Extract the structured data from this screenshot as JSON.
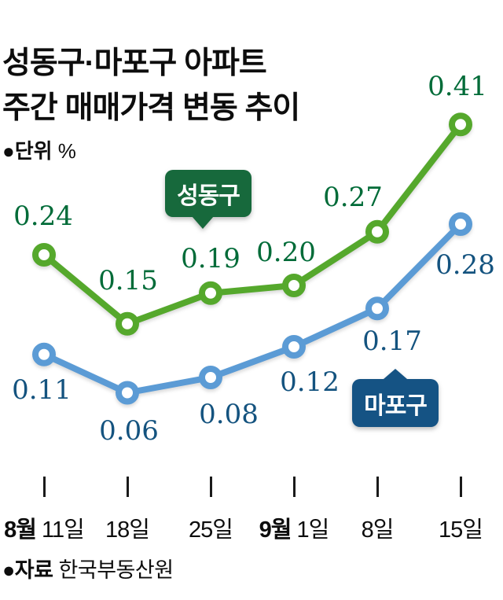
{
  "title": {
    "line1": "성동구·마포구 아파트",
    "line2": "주간 매매가격 변동 추이"
  },
  "unit": {
    "label": "●단위",
    "suffix": "%"
  },
  "footer": {
    "label": "●자료",
    "source": "한국부동산원"
  },
  "chart_data": {
    "type": "line",
    "title": "성동구·마포구 아파트 주간 매매가격 변동 추이",
    "unit": "%",
    "categories": [
      "8월 11일",
      "18일",
      "25일",
      "9월 1일",
      "8일",
      "15일"
    ],
    "x_ticks": [
      {
        "month": "8월",
        "day": "11일"
      },
      {
        "day": "18일"
      },
      {
        "day": "25일"
      },
      {
        "month": "9월",
        "day": "1일"
      },
      {
        "day": "8일"
      },
      {
        "day": "15일"
      }
    ],
    "series": [
      {
        "name": "성동구",
        "values": [
          0.24,
          0.15,
          0.19,
          0.2,
          0.27,
          0.41
        ],
        "labels": [
          "0.24",
          "0.15",
          "0.19",
          "0.20",
          "0.27",
          "0.41"
        ],
        "line_color": "#55a82c",
        "label_color": "#006b38",
        "badge_color": "#17693c",
        "label_offsets": [
          [
            -1,
            -49
          ],
          [
            1,
            -55
          ],
          [
            0,
            -44
          ],
          [
            -10,
            -42
          ],
          [
            -31,
            -44
          ],
          [
            -4,
            -48
          ]
        ]
      },
      {
        "name": "마포구",
        "values": [
          0.11,
          0.06,
          0.08,
          0.12,
          0.17,
          0.28
        ],
        "labels": [
          "0.11",
          "0.06",
          "0.08",
          "0.12",
          "0.17",
          "0.28"
        ],
        "line_color": "#5b9bd5",
        "label_color": "#14537f",
        "badge_color": "#155384",
        "label_offsets": [
          [
            -3,
            45
          ],
          [
            2,
            48
          ],
          [
            23,
            47
          ],
          [
            20,
            45
          ],
          [
            19,
            42
          ],
          [
            6,
            52
          ]
        ]
      }
    ],
    "ylim": [
      0,
      0.45
    ],
    "grid": false,
    "legend_position": "inline-badges",
    "layout": {
      "x_start": 56,
      "x_step": 106,
      "y_base": 558,
      "y_per_unit": 975,
      "tick_y": 606,
      "tick_h": 26,
      "axis_label_y": 650,
      "marker_radius": 11,
      "stroke_width": 8
    }
  }
}
